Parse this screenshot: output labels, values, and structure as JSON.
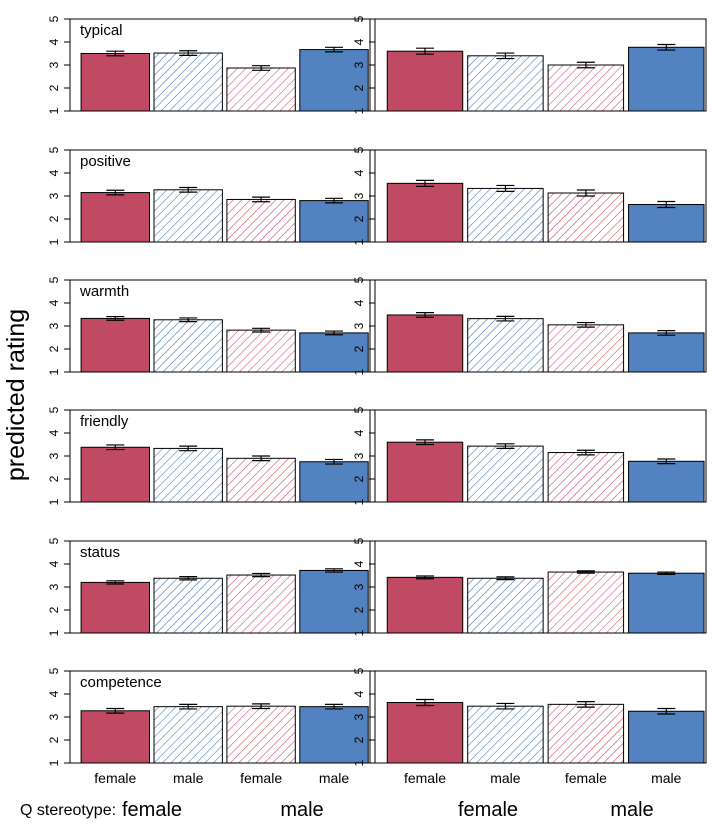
{
  "figure": {
    "ylabel": "predicted rating",
    "q_stereotype_label": "Q stereotype:",
    "subgroup_labels": [
      "female",
      "male",
      "female",
      "male"
    ],
    "group_labels": [
      "female",
      "male"
    ],
    "colors": {
      "red": "#c04a63",
      "blue": "#5282c0",
      "hatch_red": "#c04a63",
      "hatch_blue": "#3d73b0",
      "error_bar": "#000000",
      "axis": "#000000"
    },
    "bar_styles": [
      "solid-red",
      "hatched-blue",
      "hatched-red",
      "solid-blue"
    ]
  },
  "chart_data": [
    {
      "type": "bar",
      "panel": "typical",
      "column": "left",
      "title": "typical",
      "ylim": [
        1,
        5
      ],
      "yticks": [
        1,
        2,
        3,
        4,
        5
      ],
      "categories": [
        "female",
        "male",
        "female",
        "male"
      ],
      "values": [
        3.5,
        3.52,
        2.87,
        3.67
      ],
      "err": [
        0.1,
        0.1,
        0.1,
        0.1
      ]
    },
    {
      "type": "bar",
      "panel": "typical",
      "column": "right",
      "title": "",
      "ylim": [
        1,
        5
      ],
      "yticks": [
        1,
        2,
        3,
        4,
        5
      ],
      "categories": [
        "female",
        "male",
        "female",
        "male"
      ],
      "values": [
        3.6,
        3.4,
        3.0,
        3.77
      ],
      "err": [
        0.13,
        0.12,
        0.12,
        0.12
      ]
    },
    {
      "type": "bar",
      "panel": "positive",
      "column": "left",
      "title": "positive",
      "ylim": [
        1,
        5
      ],
      "yticks": [
        1,
        2,
        3,
        4,
        5
      ],
      "categories": [
        "female",
        "male",
        "female",
        "male"
      ],
      "values": [
        3.15,
        3.27,
        2.85,
        2.8
      ],
      "err": [
        0.1,
        0.1,
        0.1,
        0.1
      ]
    },
    {
      "type": "bar",
      "panel": "positive",
      "column": "right",
      "title": "",
      "ylim": [
        1,
        5
      ],
      "yticks": [
        1,
        2,
        3,
        4,
        5
      ],
      "categories": [
        "female",
        "male",
        "female",
        "male"
      ],
      "values": [
        3.55,
        3.33,
        3.13,
        2.63
      ],
      "err": [
        0.13,
        0.13,
        0.13,
        0.13
      ]
    },
    {
      "type": "bar",
      "panel": "warmth",
      "column": "left",
      "title": "warmth",
      "ylim": [
        1,
        5
      ],
      "yticks": [
        1,
        2,
        3,
        4,
        5
      ],
      "categories": [
        "female",
        "male",
        "female",
        "male"
      ],
      "values": [
        3.33,
        3.27,
        2.82,
        2.7
      ],
      "err": [
        0.08,
        0.08,
        0.08,
        0.08
      ]
    },
    {
      "type": "bar",
      "panel": "warmth",
      "column": "right",
      "title": "",
      "ylim": [
        1,
        5
      ],
      "yticks": [
        1,
        2,
        3,
        4,
        5
      ],
      "categories": [
        "female",
        "male",
        "female",
        "male"
      ],
      "values": [
        3.48,
        3.32,
        3.05,
        2.7
      ],
      "err": [
        0.1,
        0.1,
        0.1,
        0.1
      ]
    },
    {
      "type": "bar",
      "panel": "friendly",
      "column": "left",
      "title": "friendly",
      "ylim": [
        1,
        5
      ],
      "yticks": [
        1,
        2,
        3,
        4,
        5
      ],
      "categories": [
        "female",
        "male",
        "female",
        "male"
      ],
      "values": [
        3.38,
        3.33,
        2.9,
        2.75
      ],
      "err": [
        0.1,
        0.1,
        0.1,
        0.1
      ]
    },
    {
      "type": "bar",
      "panel": "friendly",
      "column": "right",
      "title": "",
      "ylim": [
        1,
        5
      ],
      "yticks": [
        1,
        2,
        3,
        4,
        5
      ],
      "categories": [
        "female",
        "male",
        "female",
        "male"
      ],
      "values": [
        3.6,
        3.43,
        3.15,
        2.77
      ],
      "err": [
        0.1,
        0.1,
        0.1,
        0.1
      ]
    },
    {
      "type": "bar",
      "panel": "status",
      "column": "left",
      "title": "status",
      "ylim": [
        1,
        5
      ],
      "yticks": [
        1,
        2,
        3,
        4,
        5
      ],
      "categories": [
        "female",
        "male",
        "female",
        "male"
      ],
      "values": [
        3.2,
        3.38,
        3.52,
        3.72
      ],
      "err": [
        0.07,
        0.07,
        0.07,
        0.07
      ]
    },
    {
      "type": "bar",
      "panel": "status",
      "column": "right",
      "title": "",
      "ylim": [
        1,
        5
      ],
      "yticks": [
        1,
        2,
        3,
        4,
        5
      ],
      "categories": [
        "female",
        "male",
        "female",
        "male"
      ],
      "values": [
        3.42,
        3.38,
        3.65,
        3.6
      ],
      "err": [
        0.06,
        0.06,
        0.05,
        0.05
      ]
    },
    {
      "type": "bar",
      "panel": "competence",
      "column": "left",
      "title": "competence",
      "ylim": [
        1,
        5
      ],
      "yticks": [
        1,
        2,
        3,
        4,
        5
      ],
      "categories": [
        "female",
        "male",
        "female",
        "male"
      ],
      "values": [
        3.27,
        3.45,
        3.47,
        3.45
      ],
      "err": [
        0.1,
        0.1,
        0.1,
        0.1
      ]
    },
    {
      "type": "bar",
      "panel": "competence",
      "column": "right",
      "title": "",
      "ylim": [
        1,
        5
      ],
      "yticks": [
        1,
        2,
        3,
        4,
        5
      ],
      "categories": [
        "female",
        "male",
        "female",
        "male"
      ],
      "values": [
        3.63,
        3.47,
        3.55,
        3.25
      ],
      "err": [
        0.13,
        0.12,
        0.12,
        0.12
      ]
    }
  ]
}
